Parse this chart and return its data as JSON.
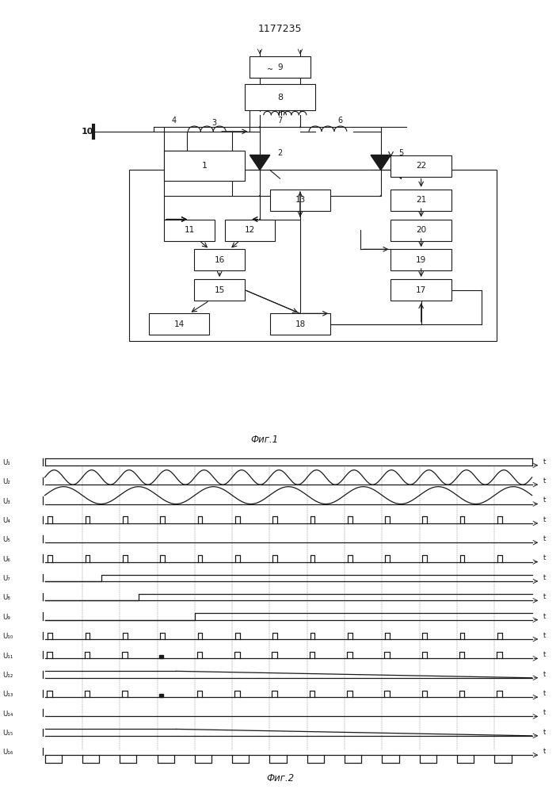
{
  "title": "1177235",
  "fig1_caption": "Фиг.1",
  "fig2_caption": "Фиг.2",
  "signal_labels": [
    "U₁",
    "U₂",
    "U₃",
    "U₄",
    "U₅",
    "U₆",
    "U₇",
    "U₈",
    "U₉",
    "U₁₀",
    "U₁₁",
    "U₁₂",
    "U₁₃",
    "U₁₄",
    "U₁₅",
    "U₁₆"
  ],
  "background_color": "#ffffff",
  "line_color": "#1a1a1a",
  "n_periods": 13,
  "n_signals": 16
}
